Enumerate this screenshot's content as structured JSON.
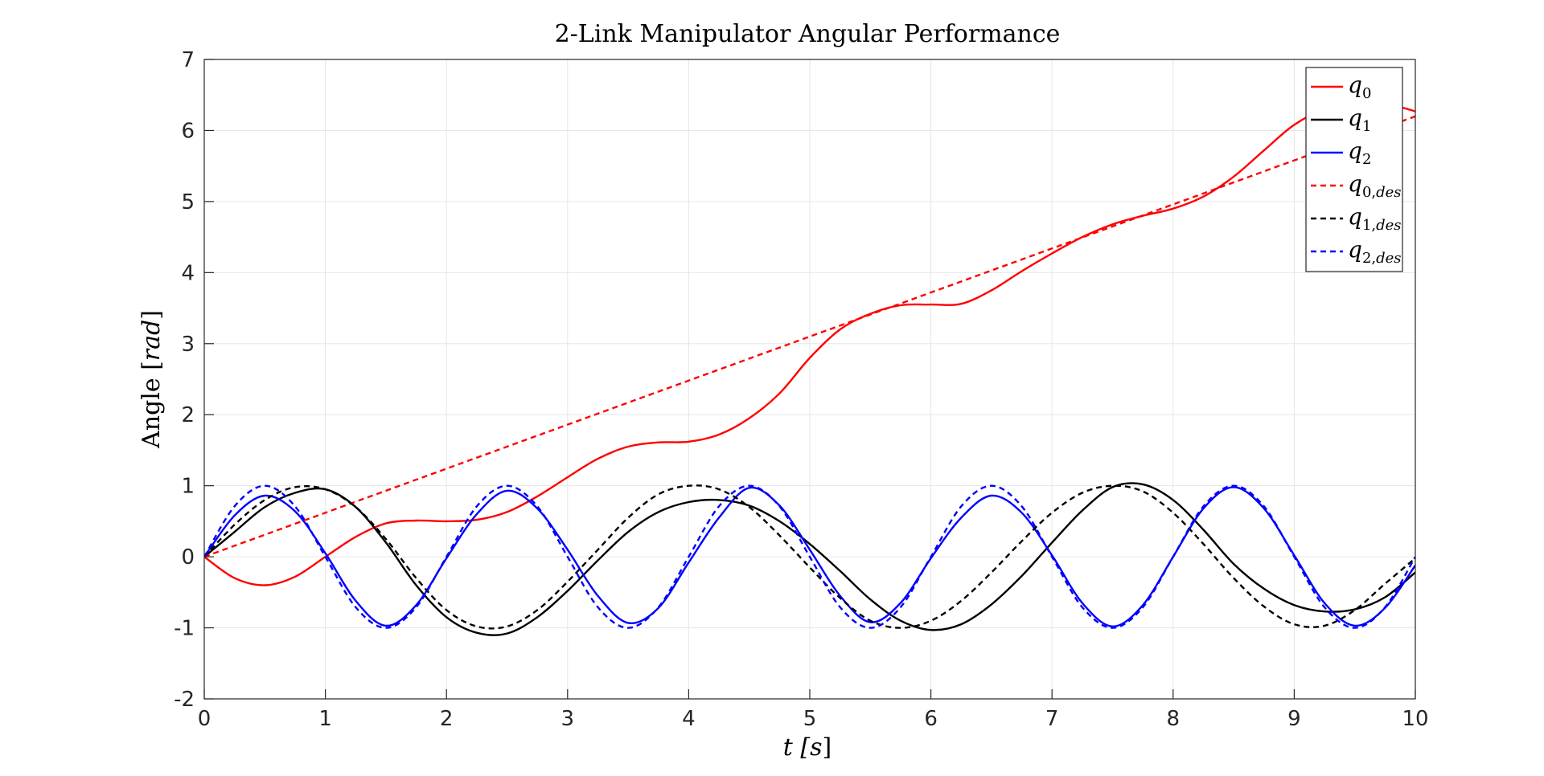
{
  "chart_data": {
    "type": "line",
    "title": "2-Link Manipulator Angular Performance",
    "xlabel": "t [s]",
    "ylabel": "Angle [rad]",
    "xlim": [
      0,
      10
    ],
    "ylim": [
      -2,
      7
    ],
    "xticks": [
      "0",
      "1",
      "2",
      "3",
      "4",
      "5",
      "6",
      "7",
      "8",
      "9",
      "10"
    ],
    "yticks": [
      "-2",
      "-1",
      "0",
      "1",
      "2",
      "3",
      "4",
      "5",
      "6",
      "7"
    ],
    "grid": true,
    "legend_position": "top-right",
    "series": [
      {
        "name": "q0",
        "name_main": "q",
        "name_sub": "0",
        "color": "#ff0000",
        "style": "solid",
        "x": [
          0,
          0.25,
          0.5,
          0.75,
          1.0,
          1.25,
          1.5,
          1.75,
          2.0,
          2.25,
          2.5,
          2.75,
          3.0,
          3.25,
          3.5,
          3.75,
          4.0,
          4.25,
          4.5,
          4.75,
          5.0,
          5.25,
          5.5,
          5.75,
          6.0,
          6.25,
          6.5,
          6.75,
          7.0,
          7.25,
          7.5,
          7.75,
          8.0,
          8.25,
          8.5,
          8.75,
          9.0,
          9.25,
          9.5,
          9.75,
          10.0
        ],
        "y": [
          0,
          -0.3,
          -0.4,
          -0.28,
          0.0,
          0.28,
          0.47,
          0.51,
          0.5,
          0.52,
          0.63,
          0.85,
          1.12,
          1.38,
          1.55,
          1.61,
          1.62,
          1.72,
          1.95,
          2.3,
          2.8,
          3.2,
          3.42,
          3.54,
          3.55,
          3.56,
          3.75,
          4.02,
          4.27,
          4.5,
          4.68,
          4.8,
          4.9,
          5.07,
          5.35,
          5.72,
          6.08,
          6.3,
          6.4,
          6.38,
          6.27
        ]
      },
      {
        "name": "q1",
        "name_main": "q",
        "name_sub": "1",
        "color": "#000000",
        "style": "solid",
        "x": [
          0,
          0.25,
          0.5,
          0.75,
          1.0,
          1.25,
          1.5,
          1.75,
          2.0,
          2.25,
          2.5,
          2.75,
          3.0,
          3.25,
          3.5,
          3.75,
          4.0,
          4.25,
          4.5,
          4.75,
          5.0,
          5.25,
          5.5,
          5.75,
          6.0,
          6.25,
          6.5,
          6.75,
          7.0,
          7.25,
          7.5,
          7.75,
          8.0,
          8.25,
          8.5,
          8.75,
          9.0,
          9.25,
          9.5,
          9.75,
          10.0
        ],
        "y": [
          0,
          0.35,
          0.7,
          0.9,
          0.95,
          0.7,
          0.2,
          -0.4,
          -0.85,
          -1.07,
          -1.08,
          -0.85,
          -0.48,
          -0.05,
          0.35,
          0.63,
          0.77,
          0.8,
          0.72,
          0.5,
          0.18,
          -0.2,
          -0.6,
          -0.9,
          -1.03,
          -0.95,
          -0.67,
          -0.27,
          0.2,
          0.65,
          0.98,
          1.02,
          0.8,
          0.38,
          -0.1,
          -0.45,
          -0.68,
          -0.77,
          -0.74,
          -0.57,
          -0.22
        ]
      },
      {
        "name": "q2",
        "name_main": "q",
        "name_sub": "2",
        "color": "#0000ff",
        "style": "solid",
        "x": [
          0,
          0.25,
          0.5,
          0.75,
          1.0,
          1.25,
          1.5,
          1.75,
          2.0,
          2.25,
          2.5,
          2.75,
          3.0,
          3.25,
          3.5,
          3.75,
          4.0,
          4.25,
          4.5,
          4.75,
          5.0,
          5.25,
          5.5,
          5.75,
          6.0,
          6.25,
          6.5,
          6.75,
          7.0,
          7.25,
          7.5,
          7.75,
          8.0,
          8.25,
          8.5,
          8.75,
          9.0,
          9.25,
          9.5,
          9.75,
          10.0
        ],
        "y": [
          0,
          0.58,
          0.86,
          0.64,
          0.05,
          -0.62,
          -0.97,
          -0.68,
          -0.02,
          0.6,
          0.93,
          0.68,
          0.1,
          -0.55,
          -0.93,
          -0.72,
          -0.08,
          0.55,
          0.97,
          0.72,
          0.1,
          -0.55,
          -0.92,
          -0.65,
          -0.02,
          0.55,
          0.86,
          0.62,
          0.02,
          -0.65,
          -0.98,
          -0.68,
          0.0,
          0.68,
          0.98,
          0.68,
          0.02,
          -0.65,
          -0.97,
          -0.72,
          -0.12
        ]
      },
      {
        "name": "q0,des",
        "name_main": "q",
        "name_sub": "0,des",
        "color": "#ff0000",
        "style": "dashed",
        "x": [
          0,
          10
        ],
        "y": [
          0,
          6.2
        ]
      },
      {
        "name": "q1,des",
        "name_main": "q",
        "name_sub": "1,des",
        "color": "#000000",
        "style": "dashed",
        "x": [
          0,
          0.25,
          0.5,
          0.75,
          1.0,
          1.25,
          1.5,
          1.75,
          2.0,
          2.25,
          2.5,
          2.75,
          3.0,
          3.25,
          3.5,
          3.75,
          4.0,
          4.25,
          4.5,
          4.75,
          5.0,
          5.25,
          5.5,
          5.75,
          6.0,
          6.25,
          6.5,
          6.75,
          7.0,
          7.25,
          7.5,
          7.75,
          8.0,
          8.25,
          8.5,
          8.75,
          9.0,
          9.25,
          9.5,
          9.75,
          10.0
        ],
        "y": [
          0,
          0.45,
          0.8,
          0.98,
          0.95,
          0.7,
          0.25,
          -0.3,
          -0.75,
          -0.98,
          -0.98,
          -0.75,
          -0.35,
          0.1,
          0.55,
          0.88,
          1.0,
          0.95,
          0.7,
          0.3,
          -0.15,
          -0.58,
          -0.9,
          -1.0,
          -0.9,
          -0.62,
          -0.22,
          0.22,
          0.62,
          0.9,
          1.0,
          0.92,
          0.62,
          0.18,
          -0.3,
          -0.7,
          -0.95,
          -0.97,
          -0.75,
          -0.38,
          -0.02
        ]
      },
      {
        "name": "q2,des",
        "name_main": "q",
        "name_sub": "2,des",
        "color": "#0000ff",
        "style": "dashed",
        "x": [
          0,
          0.25,
          0.5,
          0.75,
          1.0,
          1.25,
          1.5,
          1.75,
          2.0,
          2.25,
          2.5,
          2.75,
          3.0,
          3.25,
          3.5,
          3.75,
          4.0,
          4.25,
          4.5,
          4.75,
          5.0,
          5.25,
          5.5,
          5.75,
          6.0,
          6.25,
          6.5,
          6.75,
          7.0,
          7.25,
          7.5,
          7.75,
          8.0,
          8.25,
          8.5,
          8.75,
          9.0,
          9.25,
          9.5,
          9.75,
          10.0
        ],
        "y": [
          0,
          0.71,
          1.0,
          0.71,
          0.0,
          -0.71,
          -1.0,
          -0.71,
          0.0,
          0.71,
          1.0,
          0.71,
          0.0,
          -0.71,
          -1.0,
          -0.71,
          0.0,
          0.71,
          1.0,
          0.71,
          0.0,
          -0.71,
          -1.0,
          -0.71,
          0.0,
          0.71,
          1.0,
          0.71,
          0.0,
          -0.71,
          -1.0,
          -0.71,
          0.0,
          0.71,
          1.0,
          0.71,
          0.0,
          -0.71,
          -1.0,
          -0.71,
          0.0
        ]
      }
    ]
  }
}
